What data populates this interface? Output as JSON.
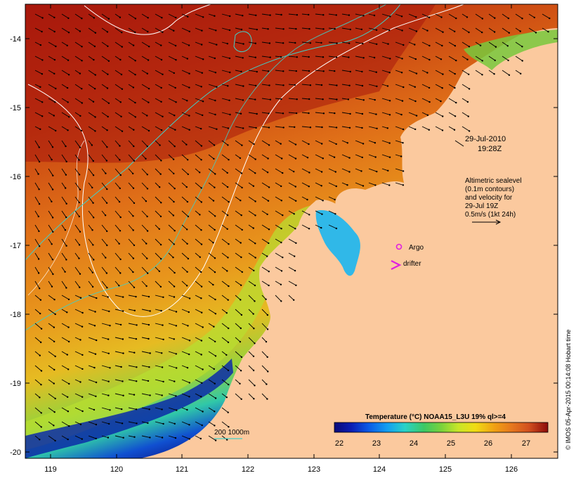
{
  "map": {
    "x_ticks": [
      "119",
      "120",
      "121",
      "122",
      "123",
      "124",
      "125",
      "126"
    ],
    "y_ticks": [
      "-14",
      "-15",
      "-16",
      "-17",
      "-18",
      "-19",
      "-20"
    ]
  },
  "annotations": {
    "date": "29-Jul-2010",
    "time": "19:28Z",
    "altimetry_lines": [
      "Altimetric sealevel",
      "(0.1m contours)",
      "and velocity for",
      "29-Jul 19Z",
      "0.5m/s (1kt 24h)"
    ],
    "argo_label": "Argo",
    "drifter_label": "drifter",
    "depth_scale_label": "200  1000m"
  },
  "colorbar": {
    "title": "Temperature (°C) NOAA15_L3U 19% ql>=4",
    "tick_labels": [
      "22",
      "23",
      "24",
      "25",
      "26",
      "27"
    ],
    "colors": [
      "#0a0a78",
      "#0a1eb4",
      "#0a5ae6",
      "#14a0f0",
      "#28d2c8",
      "#3cc864",
      "#78d23c",
      "#c8e628",
      "#f0dc14",
      "#f0a014",
      "#e6781e",
      "#d2501e",
      "#b42814",
      "#8c0a0a"
    ]
  },
  "credit": "© IMOS 05-Apr-2015 00:14:08 Hobart time",
  "colors": {
    "land": "#fbc99e",
    "sst_warm": "#b4280f",
    "sst_mid": "#e6781e",
    "sst_cool": "#f0dc14",
    "sst_cold": "#0a1eb4",
    "depth_contour": "#40d0c8",
    "sealevel_contour": "#ffffff",
    "argo": "#e020e0",
    "drifter": "#e020e0"
  }
}
